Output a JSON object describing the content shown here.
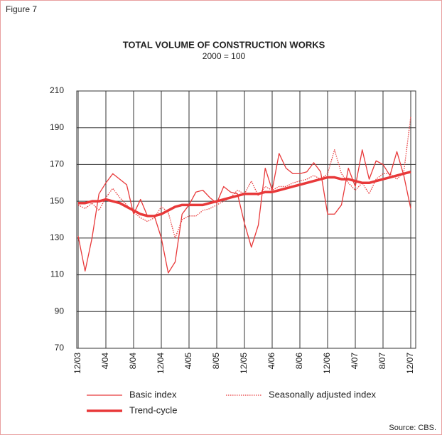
{
  "figure_label": "Figure 7",
  "source": "Source: CBS.",
  "chart_data": {
    "type": "line",
    "title": "TOTAL VOLUME OF CONSTRUCTION WORKS",
    "subtitle": "2000 = 100",
    "categories": [
      "12/03",
      null,
      null,
      null,
      "4/04",
      null,
      null,
      null,
      "8/04",
      null,
      null,
      null,
      "12/04",
      null,
      null,
      null,
      "4/05",
      null,
      null,
      null,
      "8/05",
      null,
      null,
      null,
      "12/05",
      null,
      null,
      null,
      "4/06",
      null,
      null,
      null,
      "8/06",
      null,
      null,
      null,
      "12/06",
      null,
      null,
      null,
      "4/07",
      null,
      null,
      null,
      "8/07",
      null,
      null,
      null,
      "12/07"
    ],
    "series": [
      {
        "name": "Basic index",
        "color": "#e8393a",
        "line_width": 1.3,
        "line_style": "solid",
        "values": [
          131,
          112,
          130,
          154,
          160,
          165,
          162,
          159,
          143,
          151,
          142,
          142,
          130,
          111,
          117,
          143,
          148,
          155,
          156,
          152,
          149,
          158,
          155,
          154,
          138,
          125,
          137,
          168,
          156,
          176,
          168,
          165,
          165,
          166,
          171,
          166,
          143,
          143,
          148,
          168,
          158,
          178,
          162,
          172,
          170,
          164,
          177,
          164,
          146
        ]
      },
      {
        "name": "Seasonally adjusted index",
        "color": "#e8393a",
        "line_width": 1.3,
        "line_style": "dotted",
        "values": [
          148,
          146,
          149,
          145,
          152,
          157,
          152,
          148,
          144,
          141,
          139,
          141,
          147,
          144,
          130,
          140,
          142,
          142,
          145,
          146,
          148,
          150,
          152,
          156,
          154,
          161,
          153,
          158,
          156,
          158,
          158,
          160,
          161,
          162,
          164,
          162,
          165,
          178,
          165,
          160,
          156,
          160,
          154,
          162,
          165,
          165,
          162,
          166,
          196
        ]
      },
      {
        "name": "Trend-cycle",
        "color": "#e8393a",
        "line_width": 3.5,
        "line_style": "solid",
        "values": [
          149,
          149,
          150,
          150,
          151,
          150,
          149,
          147,
          145,
          143,
          142,
          142,
          143,
          145,
          147,
          148,
          148,
          148,
          148,
          149,
          150,
          151,
          152,
          153,
          154,
          154,
          154,
          155,
          155,
          156,
          157,
          158,
          159,
          160,
          161,
          162,
          163,
          163,
          162,
          162,
          161,
          160,
          160,
          161,
          162,
          163,
          164,
          165,
          166
        ]
      }
    ],
    "ylim": [
      70,
      210
    ],
    "yticks": [
      70,
      90,
      110,
      130,
      150,
      170,
      190,
      210
    ],
    "grid": true
  }
}
